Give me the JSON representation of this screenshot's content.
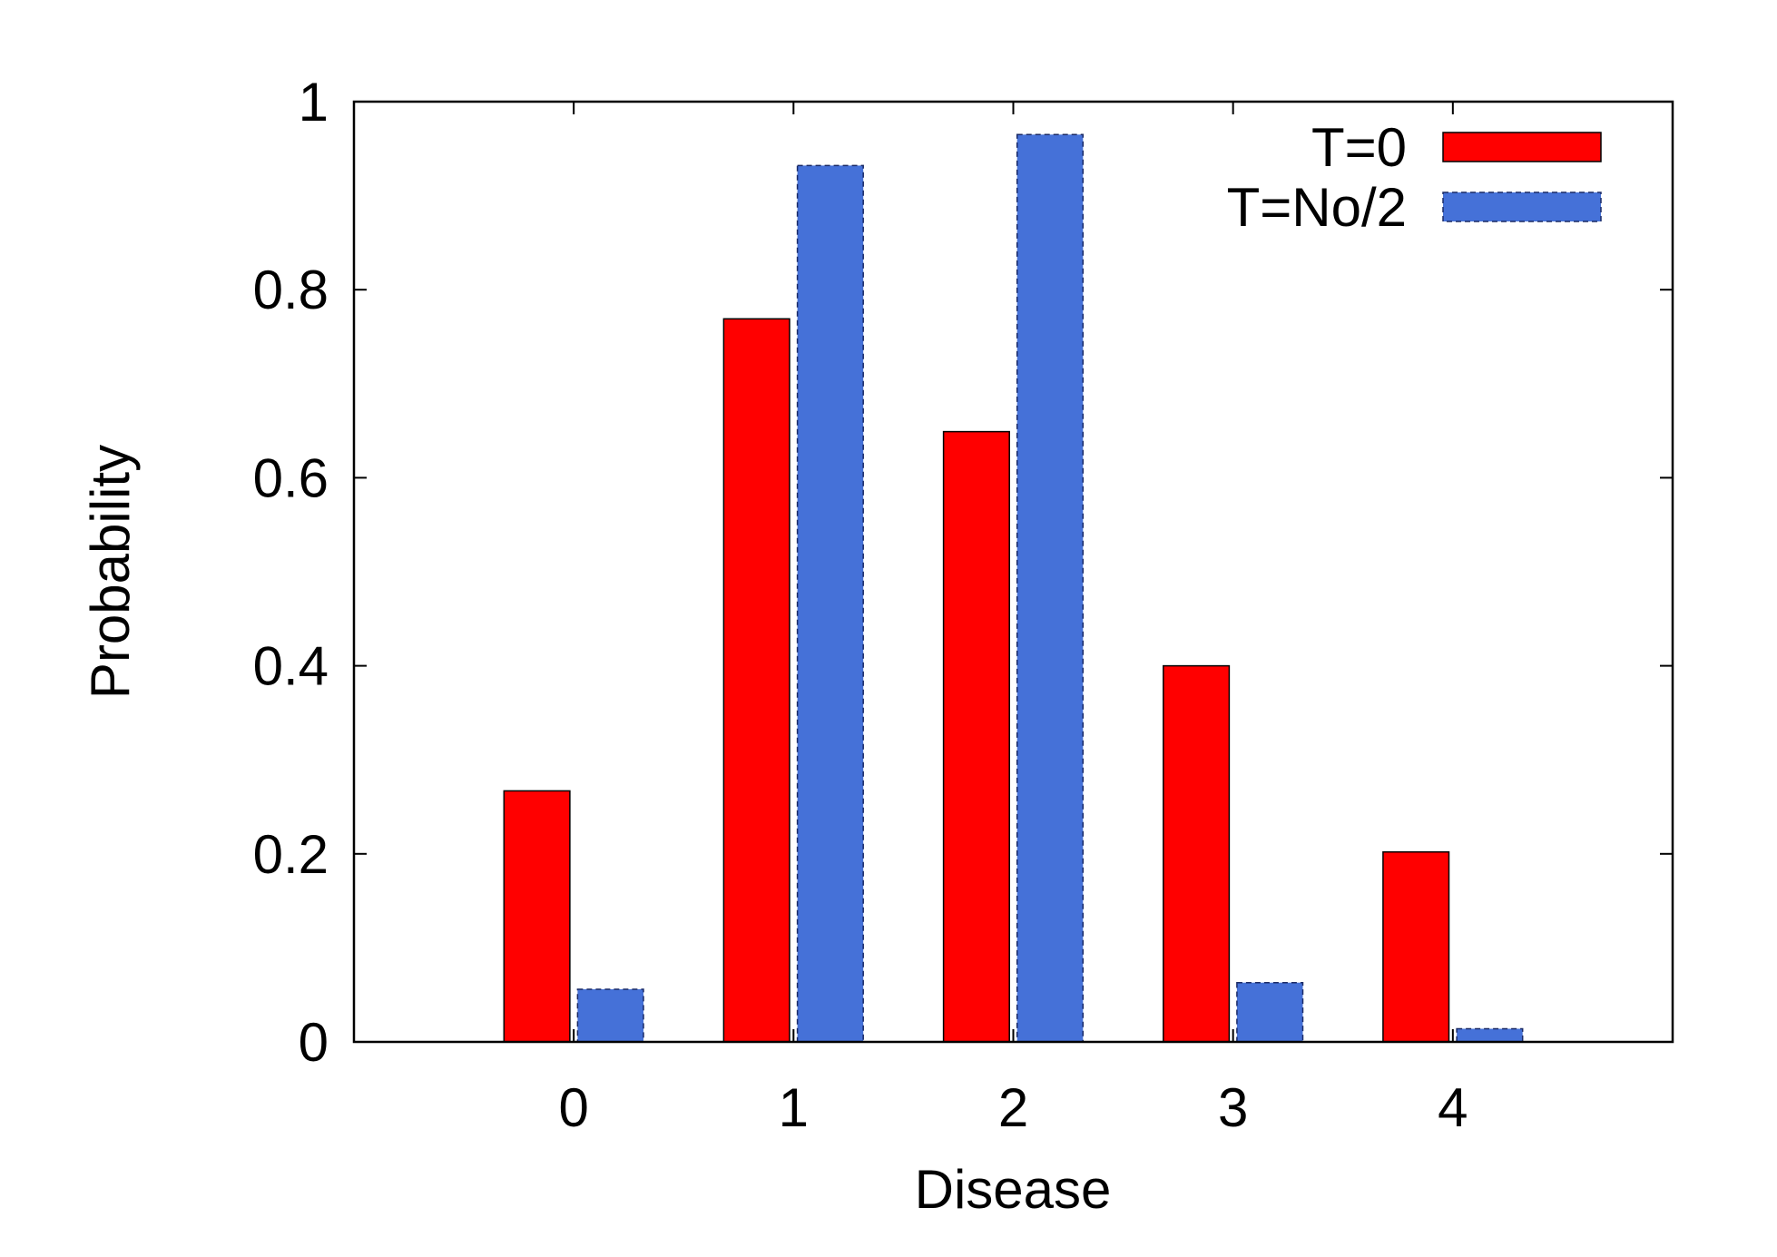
{
  "chart_data": {
    "type": "bar",
    "title": "",
    "xlabel": "Disease",
    "ylabel": "Probability",
    "categories": [
      "0",
      "1",
      "2",
      "3",
      "4"
    ],
    "x_range": [
      -1,
      5
    ],
    "ylim": [
      0,
      1
    ],
    "yticks": [
      {
        "value": 0,
        "label": "0"
      },
      {
        "value": 0.2,
        "label": "0.2"
      },
      {
        "value": 0.4,
        "label": "0.4"
      },
      {
        "value": 0.6,
        "label": "0.6"
      },
      {
        "value": 0.8,
        "label": "0.8"
      },
      {
        "value": 1,
        "label": "1"
      }
    ],
    "grid": false,
    "legend_position": "top-right",
    "series": [
      {
        "name": "T=0",
        "color": "#ff0000",
        "border": "solid",
        "values": [
          0.267,
          0.769,
          0.649,
          0.4,
          0.202
        ]
      },
      {
        "name": "T=No/2",
        "color": "#4571d8",
        "border": "dashed",
        "values": [
          0.056,
          0.932,
          0.965,
          0.063,
          0.014
        ]
      }
    ]
  }
}
